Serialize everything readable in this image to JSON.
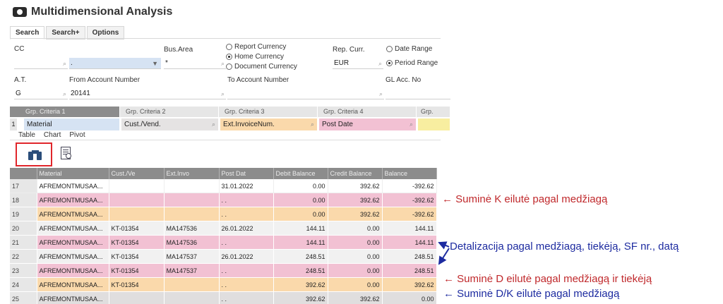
{
  "window": {
    "title": "Multidimensional Analysis",
    "icon": "eye-icon"
  },
  "tabs": [
    "Search",
    "Search+",
    "Options"
  ],
  "form": {
    "cc": {
      "label": "CC",
      "value": ""
    },
    "second_field": {
      "value": "."
    },
    "bus_area": {
      "label": "Bus.Area",
      "value": "*"
    },
    "currency_options": [
      "Report Currency",
      "Home Currency",
      "Document Currency"
    ],
    "currency_selected": "Home Currency",
    "rep_curr": {
      "label": "Rep. Curr.",
      "value": "EUR"
    },
    "range_options": [
      "Date Range",
      "Period Range"
    ],
    "range_selected": "Period Range",
    "at": {
      "label": "A.T.",
      "value": "G"
    },
    "from_account": {
      "label": "From Account Number",
      "value": "20141"
    },
    "to_account": {
      "label": "To Account Number",
      "value": ""
    },
    "gl_acc": {
      "label": "GL Acc. No",
      "value": ""
    }
  },
  "grouping": {
    "row_number": "1",
    "headers": [
      "Grp. Criteria 1",
      "Grp. Criteria 2",
      "Grp. Criteria 3",
      "Grp. Criteria 4",
      "Grp. Criter"
    ],
    "values": [
      "Material",
      "Cust./Vend.",
      "Ext.InvoiceNum.",
      "Post Date",
      ""
    ],
    "colors": [
      "#d6e3f3",
      "#e5e3e3",
      "#fad9ab",
      "#f2c1d3",
      "#f8eea0"
    ]
  },
  "view_tabs": [
    "Table",
    "Chart",
    "Pivot"
  ],
  "toolbar": {
    "binoculars": "binoculars-icon",
    "report": "report-search-icon"
  },
  "table": {
    "columns": [
      "Material",
      "Cust./Ve",
      "Ext.Invo",
      "Post Dat",
      "Debit Balance",
      "Credit Balance",
      "Balance"
    ],
    "rows": [
      {
        "n": "17",
        "material": "AFREMONTMUSAA...",
        "cust": "",
        "ext": "",
        "date": "31.01.2022",
        "debit": "0.00",
        "credit": "392.62",
        "balance": "-392.62",
        "style": "white"
      },
      {
        "n": "18",
        "material": "AFREMONTMUSAA...",
        "cust": "",
        "ext": "",
        "date": ". .",
        "debit": "0.00",
        "credit": "392.62",
        "balance": "-392.62",
        "style": "pink"
      },
      {
        "n": "19",
        "material": "AFREMONTMUSAA...",
        "cust": "",
        "ext": "",
        "date": ". .",
        "debit": "0.00",
        "credit": "392.62",
        "balance": "-392.62",
        "style": "peach"
      },
      {
        "n": "20",
        "material": "AFREMONTMUSAA...",
        "cust": "KT-01354",
        "ext": "MA147536",
        "date": "26.01.2022",
        "debit": "144.11",
        "credit": "0.00",
        "balance": "144.11",
        "style": "grey"
      },
      {
        "n": "21",
        "material": "AFREMONTMUSAA...",
        "cust": "KT-01354",
        "ext": "MA147536",
        "date": ". .",
        "debit": "144.11",
        "credit": "0.00",
        "balance": "144.11",
        "style": "pink"
      },
      {
        "n": "22",
        "material": "AFREMONTMUSAA...",
        "cust": "KT-01354",
        "ext": "MA147537",
        "date": "26.01.2022",
        "debit": "248.51",
        "credit": "0.00",
        "balance": "248.51",
        "style": "grey"
      },
      {
        "n": "23",
        "material": "AFREMONTMUSAA...",
        "cust": "KT-01354",
        "ext": "MA147537",
        "date": ". .",
        "debit": "248.51",
        "credit": "0.00",
        "balance": "248.51",
        "style": "pink"
      },
      {
        "n": "24",
        "material": "AFREMONTMUSAA...",
        "cust": "KT-01354",
        "ext": "",
        "date": ". .",
        "debit": "392.62",
        "credit": "0.00",
        "balance": "392.62",
        "style": "peach"
      },
      {
        "n": "25",
        "material": "AFREMONTMUSAA...",
        "cust": "",
        "ext": "",
        "date": ". .",
        "debit": "392.62",
        "credit": "392.62",
        "balance": "0.00",
        "style": "last"
      }
    ]
  },
  "annotations": [
    {
      "text": "Suminė K eilutė pagal medžiagą",
      "color": "red"
    },
    {
      "text": "Detalizacija pagal medžiagą, tiekėją, SF nr., datą",
      "color": "blue"
    },
    {
      "text": "Suminė D eilutė pagal medžiagą ir tiekėją",
      "color": "red"
    },
    {
      "text": "Suminė D/K eilutė pagal medžiagą",
      "color": "blue"
    }
  ],
  "colors": {
    "highlight": "#e0262b",
    "annotation_red": "#c0292c",
    "annotation_blue": "#1d2ba0"
  }
}
